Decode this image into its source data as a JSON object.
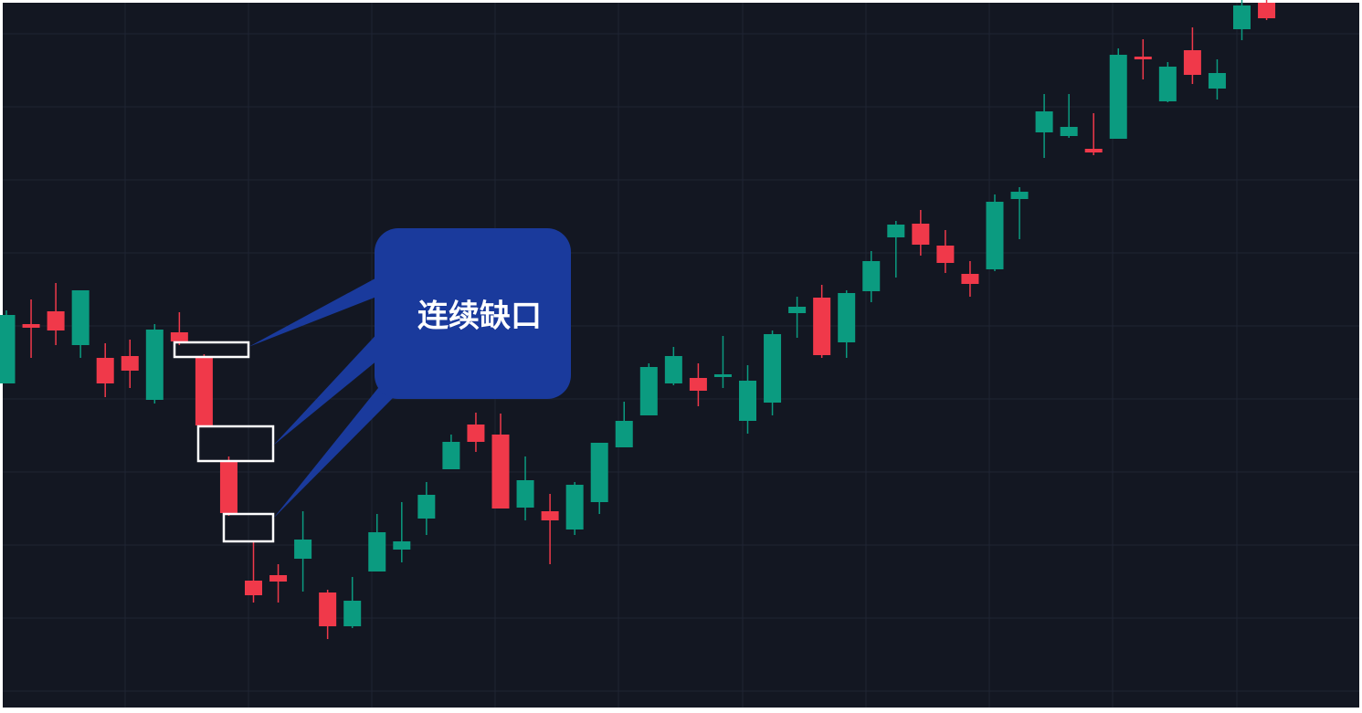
{
  "chart_data": {
    "type": "candlestick",
    "open": [
      361,
      426,
      440,
      403,
      389,
      391,
      343,
      417,
      391,
      275,
      145,
      151,
      169,
      132,
      95,
      155,
      179,
      213,
      267,
      316,
      305,
      225,
      221,
      201,
      231,
      291,
      326,
      361,
      367,
      368,
      320,
      340,
      438,
      455,
      406,
      462,
      521,
      536,
      512,
      481,
      486,
      563,
      636,
      632,
      618,
      629,
      719,
      670,
      726,
      684,
      749,
      778
    ],
    "high": [
      441,
      453,
      471,
      463,
      405,
      409,
      426,
      439,
      393,
      281,
      187,
      163,
      221,
      135,
      149,
      218,
      231,
      253,
      305,
      329,
      328,
      281,
      240,
      253,
      296,
      341,
      383,
      401,
      383,
      413,
      381,
      419,
      456,
      469,
      463,
      506,
      539,
      551,
      529,
      495,
      568,
      576,
      678,
      678,
      657,
      728,
      738,
      713,
      751,
      716,
      781,
      781
    ],
    "low": [
      361,
      389,
      403,
      389,
      346,
      356,
      339,
      403,
      313,
      216,
      121,
      121,
      133,
      81,
      93,
      155,
      165,
      195,
      267,
      286,
      224,
      211,
      163,
      195,
      218,
      291,
      326,
      359,
      336,
      356,
      306,
      326,
      411,
      389,
      389,
      450,
      477,
      501,
      482,
      456,
      484,
      519,
      608,
      630,
      611,
      629,
      694,
      669,
      689,
      672,
      737,
      759
    ],
    "close": [
      436,
      422,
      419,
      463,
      361,
      375,
      420,
      407,
      315,
      219,
      129,
      144,
      190,
      95,
      123,
      198,
      188,
      239,
      297,
      297,
      224,
      255,
      211,
      250,
      296,
      320,
      379,
      391,
      353,
      371,
      364,
      415,
      445,
      392,
      460,
      495,
      535,
      513,
      493,
      470,
      560,
      571,
      659,
      642,
      614,
      721,
      716,
      708,
      699,
      701,
      775,
      761
    ],
    "ylim": [
      0,
      781
    ],
    "up_color": "#0b9b80",
    "down_color": "#f0394a",
    "annotation": "连续缺口"
  }
}
